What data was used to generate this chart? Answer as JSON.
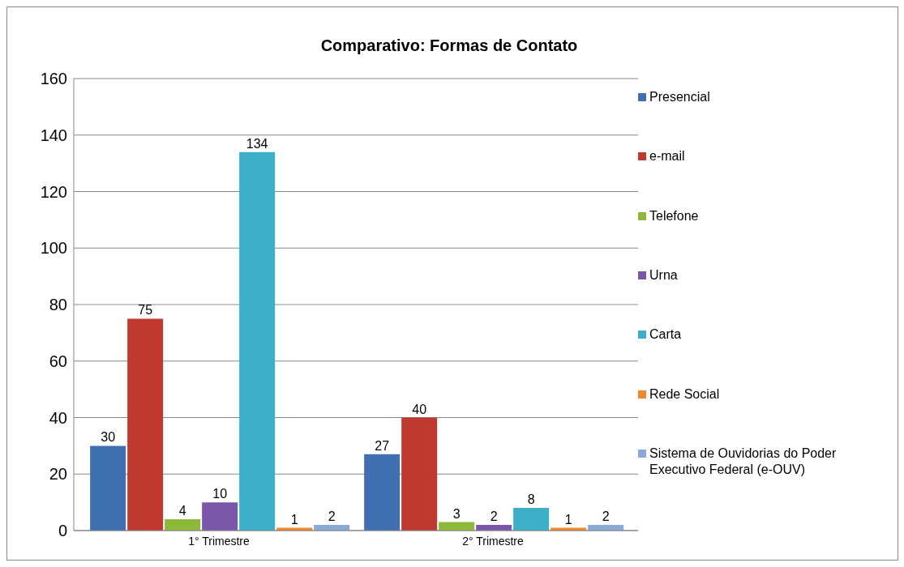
{
  "chart_data": {
    "type": "bar",
    "title": "Comparativo: Formas de Contato",
    "categories": [
      "1° Trimestre",
      "2° Trimestre"
    ],
    "series": [
      {
        "name": "Presencial",
        "color": "#3f6fb0",
        "values": [
          30,
          27
        ]
      },
      {
        "name": "e-mail",
        "color": "#c0392f",
        "values": [
          75,
          40
        ]
      },
      {
        "name": "Telefone",
        "color": "#8db83a",
        "values": [
          4,
          3
        ]
      },
      {
        "name": "Urna",
        "color": "#7a57a8",
        "values": [
          10,
          2
        ]
      },
      {
        "name": "Carta",
        "color": "#3cb0c8",
        "values": [
          134,
          8
        ]
      },
      {
        "name": "Rede Social",
        "color": "#f08a2c",
        "values": [
          1,
          1
        ]
      },
      {
        "name": "Sistema de Ouvidorias do Poder Executivo Federal (e-OUV)",
        "color": "#8aaad6",
        "values": [
          2,
          2
        ]
      }
    ],
    "ylim": [
      0,
      160
    ],
    "yticks": [
      0,
      20,
      40,
      60,
      80,
      100,
      120,
      140,
      160
    ],
    "grid": "y",
    "legend": "right",
    "data_labels": true
  }
}
